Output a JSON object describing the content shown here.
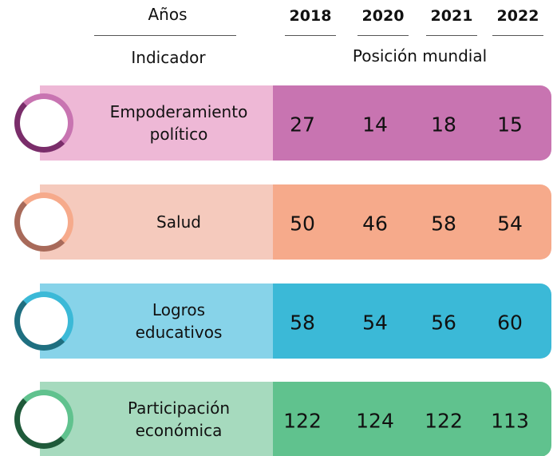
{
  "header": {
    "years_label": "Años",
    "years": [
      2018,
      2020,
      2021,
      2022
    ],
    "indicator_label": "Indicador",
    "position_label": "Posición mundial"
  },
  "rows": [
    {
      "label": [
        "Empoderamiento",
        "político"
      ],
      "values": [
        27,
        14,
        18,
        15
      ],
      "light": "#eeb8d6",
      "color": "#c874b1",
      "ring": "#7a2d6a"
    },
    {
      "label": [
        "Salud"
      ],
      "values": [
        50,
        46,
        58,
        54
      ],
      "light": "#f5cabd",
      "color": "#f6aa8b",
      "ring": "#a86a5a"
    },
    {
      "label": [
        "Logros",
        "educativos"
      ],
      "values": [
        58,
        54,
        56,
        60
      ],
      "light": "#87d3e9",
      "color": "#3bb9d7",
      "ring": "#1f6f80"
    },
    {
      "label": [
        "Participación",
        "económica"
      ],
      "values": [
        122,
        124,
        122,
        113
      ],
      "light": "#a6dabe",
      "color": "#60c28e",
      "ring": "#1f5a3a"
    }
  ]
}
